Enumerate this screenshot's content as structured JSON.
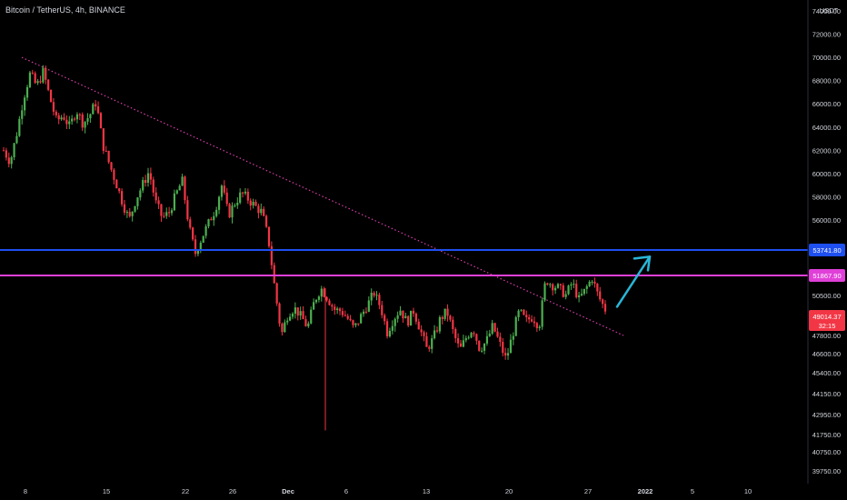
{
  "symbol_title": "Bitcoin / TetherUS, 4h, BINANCE",
  "colors": {
    "background": "#000000",
    "up": "#4caf50",
    "down": "#f23645",
    "blue_line": "#1e4ff0",
    "magenta_line": "#e040d8",
    "trend_line": "#d63ea9",
    "arrow": "#29b6d8",
    "axis_text": "#d1d4dc"
  },
  "chart_data": {
    "type": "candlestick",
    "quote_currency": "USDT",
    "y_axis_labels": [
      "74000.00",
      "72000.00",
      "70000.00",
      "68000.00",
      "66000.00",
      "64000.00",
      "62000.00",
      "60000.00",
      "58000.00",
      "56000.00",
      "50500.00",
      "47800.00",
      "46600.00",
      "45400.00",
      "44150.00",
      "42950.00",
      "41750.00",
      "40750.00",
      "39750.00"
    ],
    "x_axis_labels": [
      "8",
      "15",
      "22",
      "26",
      "Dec",
      "6",
      "13",
      "20",
      "27",
      "2022",
      "5",
      "10"
    ],
    "horizontal_lines": [
      {
        "name": "resistance-blue",
        "value": 53741.8,
        "label": "53741.80",
        "color": "#1e4ff0"
      },
      {
        "name": "resistance-magenta",
        "value": 51867.9,
        "label": "51867.90",
        "color": "#e040d8"
      }
    ],
    "current_price": {
      "value": 49014.37,
      "label": "49014.37",
      "countdown": "32:15"
    },
    "trendline": {
      "style": "dotted",
      "from_value": 70000,
      "to_value": 47800
    },
    "arrow": {
      "direction": "up"
    },
    "close_path": [
      62000,
      61000,
      63500,
      66500,
      68600,
      67500,
      68800,
      66500,
      64500,
      65000,
      64000,
      65500,
      64300,
      65000,
      66200,
      62500,
      60800,
      59200,
      57500,
      56000,
      57800,
      59000,
      60200,
      57500,
      56200,
      56600,
      58100,
      59400,
      55600,
      53500,
      54700,
      55800,
      56900,
      59000,
      56400,
      57500,
      58300,
      57800,
      57200,
      56700,
      54700,
      51000,
      47800,
      49200,
      49600,
      49000,
      48300,
      50100,
      51000,
      50300,
      49500,
      49400,
      48900,
      48200,
      49000,
      49800,
      50700,
      49700,
      48000,
      48900,
      49500,
      48600,
      49400,
      48200,
      46900,
      47600,
      48800,
      49400,
      48000,
      46800,
      47700,
      48300,
      46900,
      47400,
      48400,
      47300,
      46200,
      47900,
      49400,
      48700,
      49000,
      48400,
      51600,
      51200,
      51000,
      50500,
      51400,
      50200,
      50900,
      51700,
      50400,
      49500
    ]
  }
}
